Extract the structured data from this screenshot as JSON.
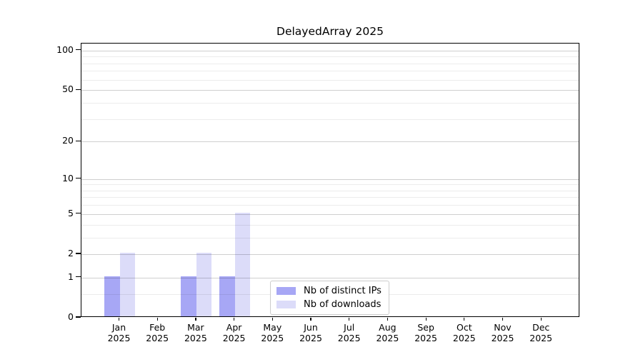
{
  "chart_data": {
    "type": "bar",
    "title": "DelayedArray 2025",
    "categories": [
      "Jan",
      "Feb",
      "Mar",
      "Apr",
      "May",
      "Jun",
      "Jul",
      "Aug",
      "Sep",
      "Oct",
      "Nov",
      "Dec"
    ],
    "year": "2025",
    "series": [
      {
        "name": "Nb of distinct IPs",
        "color": "#a7a7f5",
        "values": [
          1,
          0,
          1,
          1,
          0,
          0,
          0,
          0,
          0,
          0,
          0,
          0
        ]
      },
      {
        "name": "Nb of downloads",
        "color": "#dcdcf9",
        "values": [
          2,
          0,
          2,
          5,
          0,
          0,
          0,
          0,
          0,
          0,
          0,
          0
        ]
      }
    ],
    "y_axis": {
      "scale": "log1p",
      "major_ticks": [
        0,
        1,
        2,
        5,
        10,
        20,
        50,
        100
      ],
      "minor_gridlines": [
        0.5,
        3,
        4,
        6,
        7,
        8,
        9,
        30,
        40,
        60,
        70,
        80,
        90
      ],
      "ylim": [
        0,
        113
      ]
    },
    "legend": {
      "entries": [
        "Nb of distinct IPs",
        "Nb of downloads"
      ],
      "position": "lower center"
    },
    "grid": "horizontal",
    "colors": {
      "background": "#ffffff",
      "axis": "#000000",
      "text": "#000000",
      "major_grid": "#cfcfcf",
      "minor_grid": "#ececec"
    }
  }
}
